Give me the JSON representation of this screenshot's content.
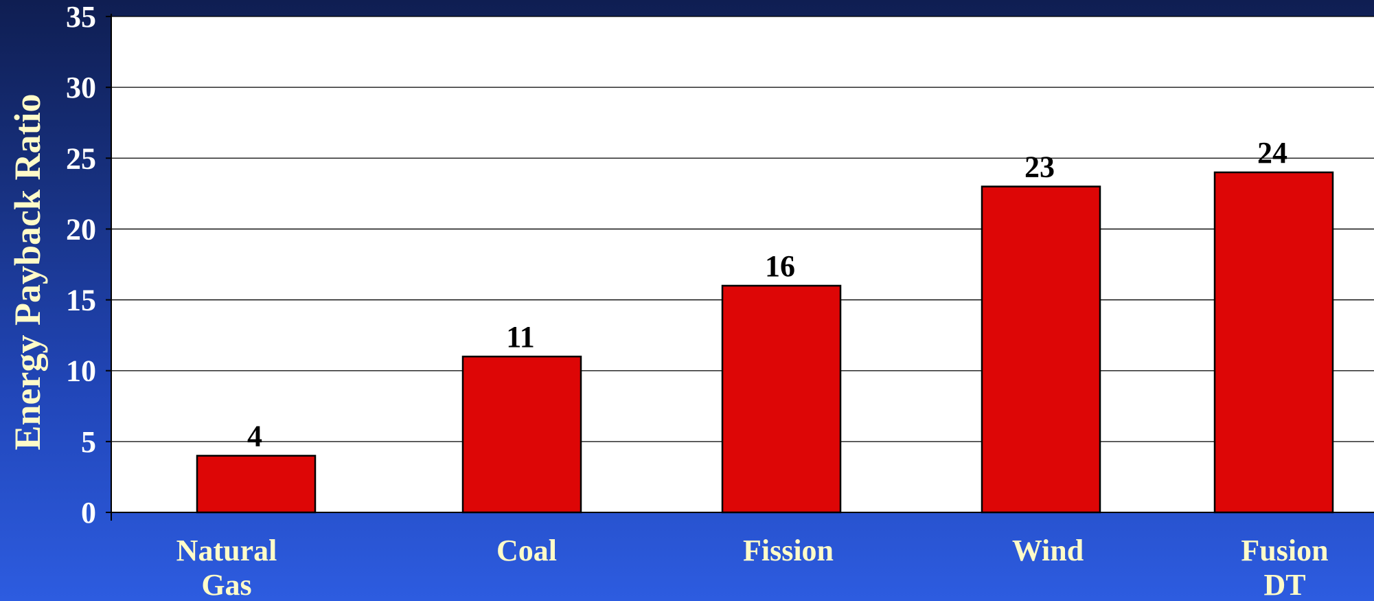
{
  "chart_data": {
    "type": "bar",
    "title": "",
    "xlabel": "",
    "ylabel": "Energy Payback Ratio",
    "categories": [
      [
        "Natural",
        "Gas"
      ],
      [
        "Coal"
      ],
      [
        "Fission"
      ],
      [
        "Wind"
      ],
      [
        "Fusion",
        "DT"
      ]
    ],
    "values": [
      4,
      11,
      16,
      23,
      24
    ],
    "data_labels": [
      "4",
      "11",
      "16",
      "23",
      "24"
    ],
    "ylim": [
      0,
      35
    ],
    "yticks": [
      0,
      5,
      10,
      15,
      20,
      25,
      30,
      35
    ],
    "grid": true,
    "legend": "none",
    "colors": {
      "bar": "#dd0606",
      "bar_border": "#000000",
      "plot_background": "#ffffff",
      "gridline": "#000000"
    }
  }
}
